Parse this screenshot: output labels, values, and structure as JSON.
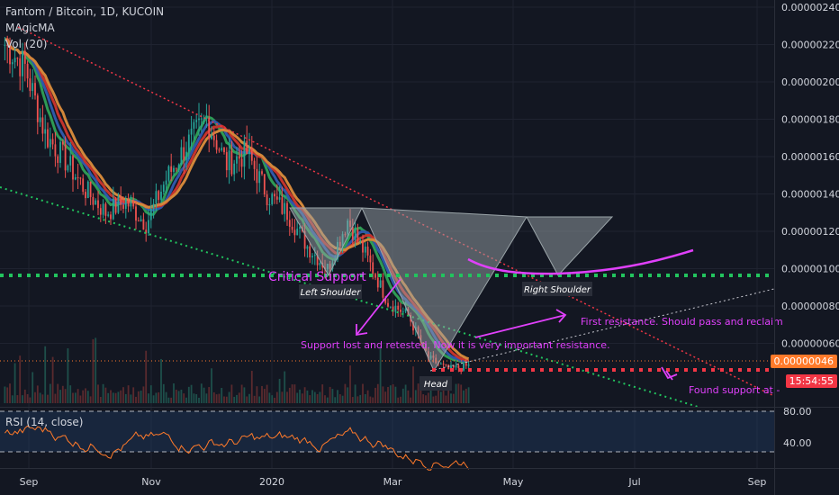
{
  "header": {
    "symbol_line": "Fantom / Bitcoin, 1D, KUCOIN",
    "indicator_1": "MAgicMA",
    "indicator_2": "Vol (20)"
  },
  "chart_data": {
    "type": "candlestick",
    "price_axis": {
      "ticks": [
        "0.00000240",
        "0.00000220",
        "0.00000200",
        "0.00000180",
        "0.00000160",
        "0.00000140",
        "0.00000120",
        "0.00000100",
        "0.00000080",
        "0.00000060"
      ],
      "ylim": [
        4e-07,
        2.4e-06
      ]
    },
    "time_axis": {
      "ticks": [
        "Sep",
        "Nov",
        "2020",
        "Mar",
        "May",
        "Jul",
        "Sep"
      ]
    },
    "last_price": "0.00000046",
    "countdown": "15:54:55",
    "price_path": [
      2.2,
      2.08,
      1.72,
      1.58,
      1.42,
      1.3,
      1.36,
      1.24,
      1.48,
      1.66,
      1.8,
      1.56,
      1.62,
      1.4,
      1.3,
      1.12,
      1.0,
      1.26,
      1.05,
      0.82,
      0.75,
      0.52,
      0.46,
      0.48
    ],
    "annotations": [
      "Critical Support",
      "Left Shoulder",
      "Right Shoulder",
      "Head",
      "First resistance. Should pass and reclaim",
      "Support lost and retested. Now it is very important resistance.",
      "Found support at -"
    ],
    "levels": [
      {
        "name": "Critical Support",
        "value": 9.2e-07,
        "color": "#22c45e"
      },
      {
        "name": "support-red",
        "value": 4.3e-07,
        "color": "#f23645"
      }
    ],
    "rsi": {
      "label": "RSI (14, close)",
      "ticks": [
        "80.00",
        "40.00"
      ],
      "ylim": [
        20,
        90
      ]
    },
    "colors": {
      "up": "#26a69a",
      "down": "#ef5350",
      "ma_orange": "#d2873a",
      "ma_red": "#c4332c",
      "ma_blue": "#2f58a8",
      "ma_green": "#2e9a55",
      "ma_brown": "#a07850",
      "annotation": "#e040fb",
      "rsi_line": "#ff7a2a",
      "background": "#131722"
    }
  }
}
